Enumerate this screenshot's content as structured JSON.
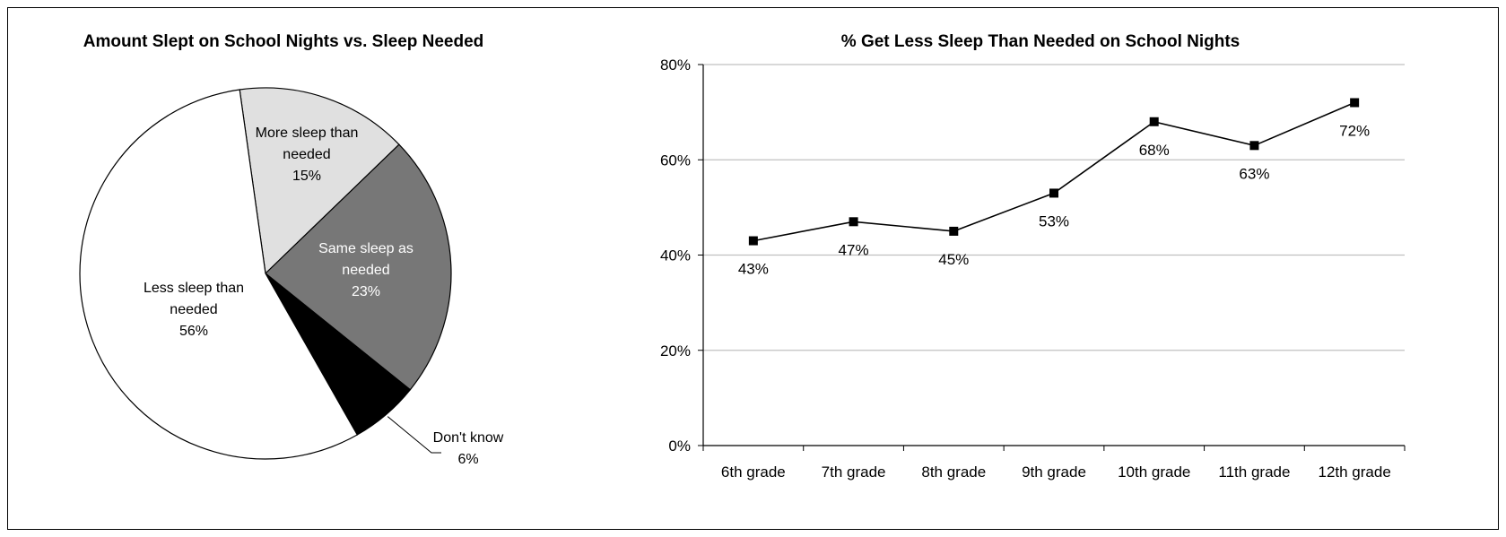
{
  "chart_data": [
    {
      "type": "pie",
      "title": "Amount Slept on School Nights vs. Sleep Needed",
      "slices": [
        {
          "label_lines": [
            "More sleep than",
            "needed"
          ],
          "value": 15,
          "value_label": "15%",
          "color": "#e0e0e0",
          "text_color": "#000000"
        },
        {
          "label_lines": [
            "Same sleep as",
            "needed"
          ],
          "value": 23,
          "value_label": "23%",
          "color": "#777777",
          "text_color": "#ffffff"
        },
        {
          "label_lines": [
            "Don't know"
          ],
          "value": 6,
          "value_label": "6%",
          "color": "#000000",
          "text_color": "#000000"
        },
        {
          "label_lines": [
            "Less sleep than",
            "needed"
          ],
          "value": 56,
          "value_label": "56%",
          "color": "#ffffff",
          "text_color": "#000000"
        }
      ]
    },
    {
      "type": "line",
      "title": "% Get Less Sleep Than Needed on School Nights",
      "categories": [
        "6th grade",
        "7th grade",
        "8th grade",
        "9th grade",
        "10th grade",
        "11th grade",
        "12th grade"
      ],
      "series": [
        {
          "values": [
            43,
            47,
            45,
            53,
            68,
            63,
            72
          ],
          "labels": [
            "43%",
            "47%",
            "45%",
            "53%",
            "68%",
            "63%",
            "72%"
          ]
        }
      ],
      "ylim": [
        0,
        80
      ],
      "yticks": [
        0,
        20,
        40,
        60,
        80
      ],
      "ytick_labels": [
        "0%",
        "20%",
        "40%",
        "60%",
        "80%"
      ],
      "grid": true,
      "line_color": "#000000"
    }
  ]
}
